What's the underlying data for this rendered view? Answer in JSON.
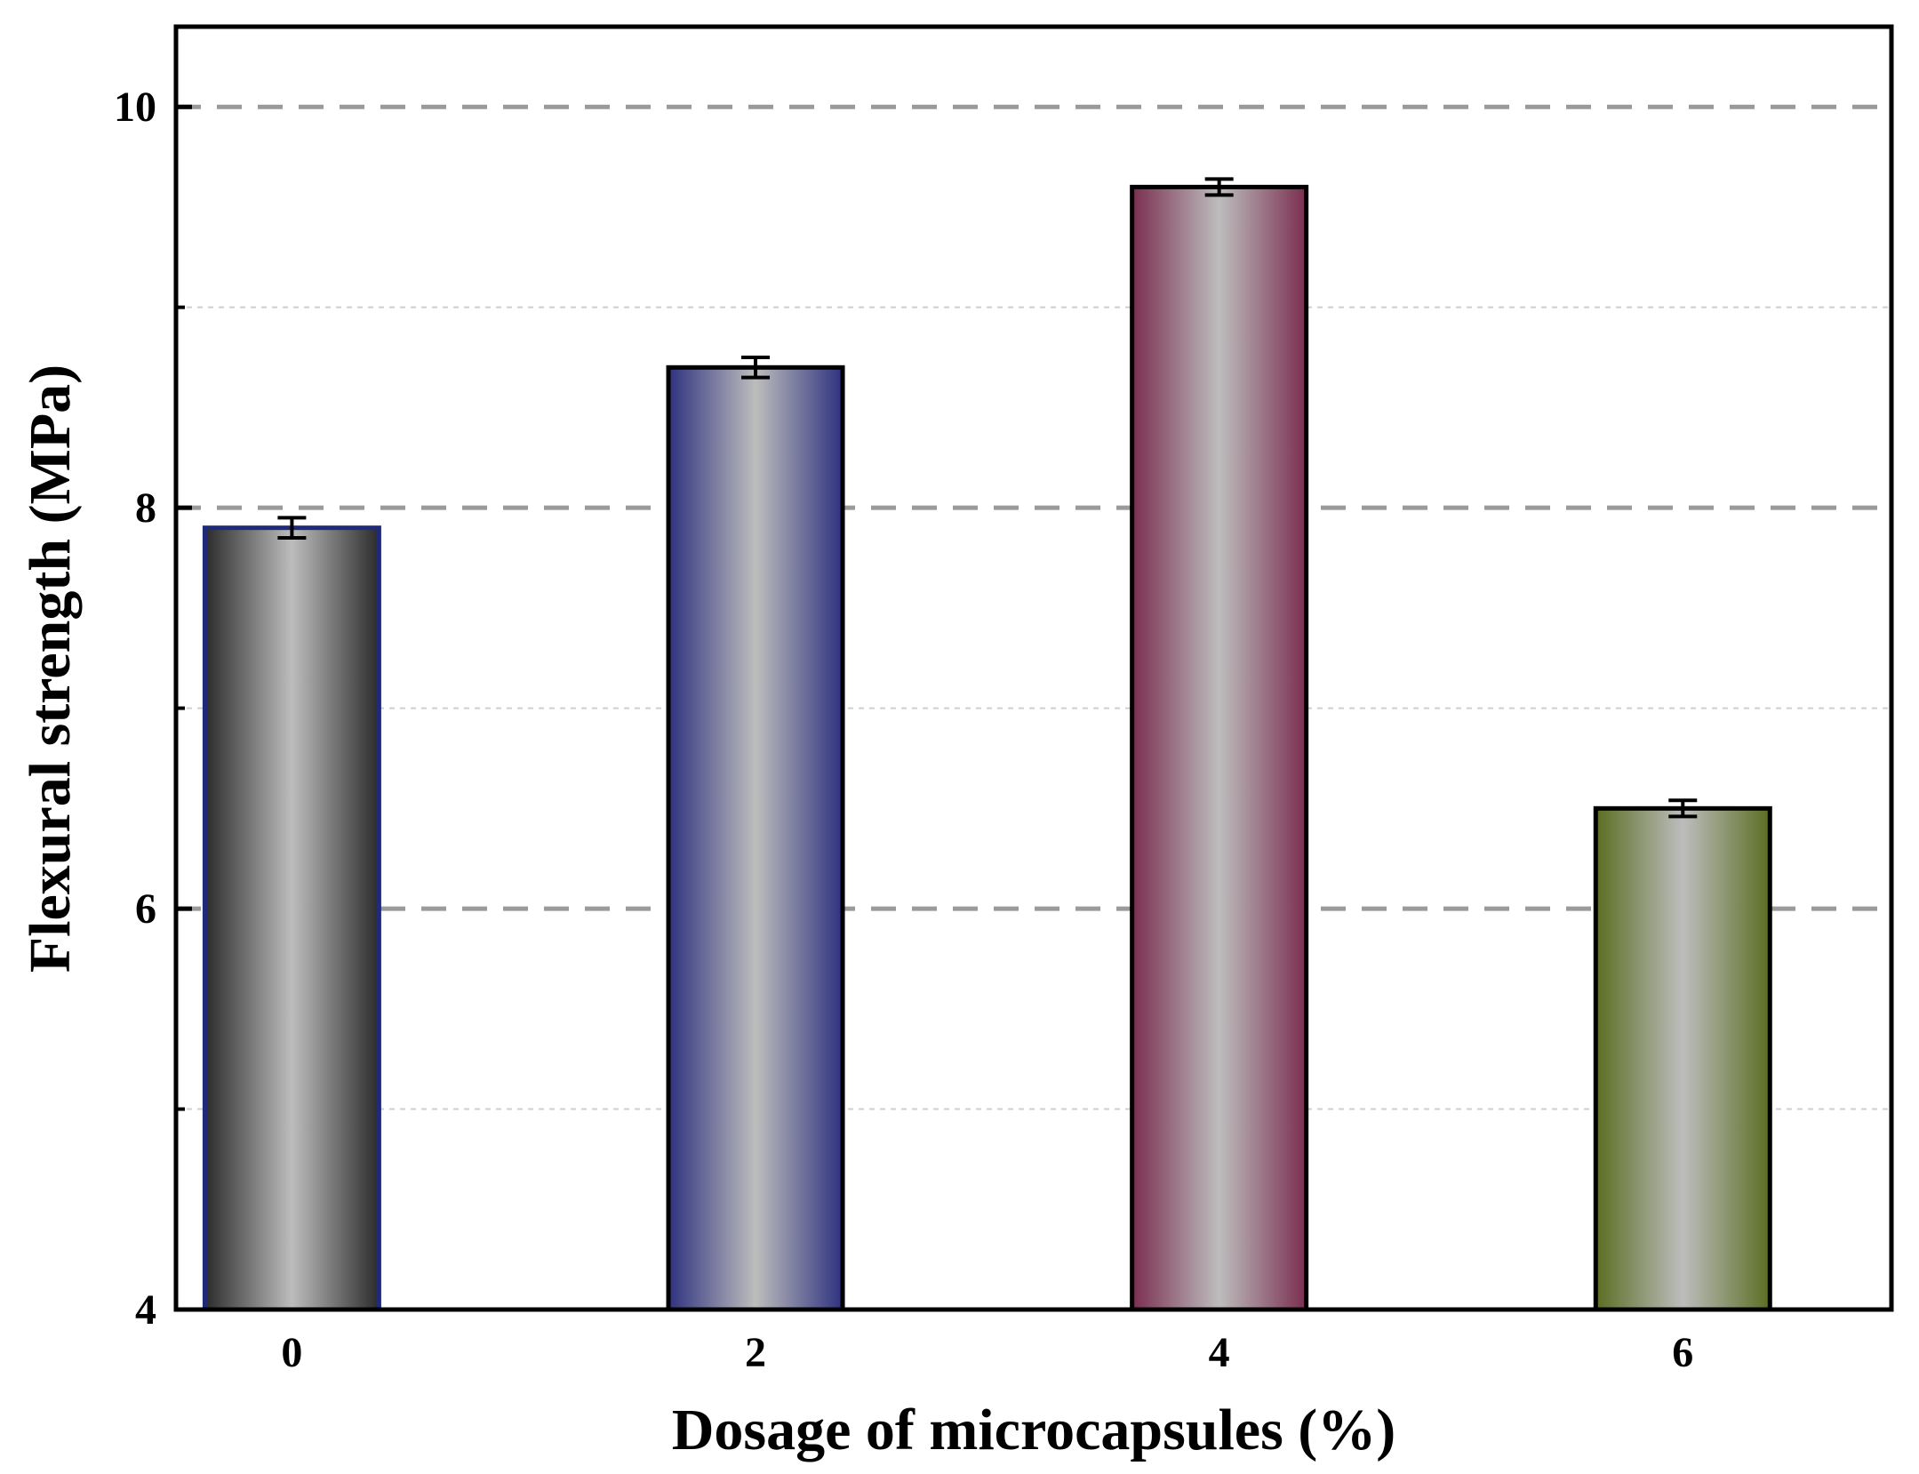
{
  "chart_data": {
    "type": "bar",
    "title": "",
    "xlabel": "Dosage of microcapsules (%)",
    "ylabel": "Flexural strength (MPa)",
    "categories": [
      "0",
      "2",
      "4",
      "6"
    ],
    "values": [
      7.9,
      8.7,
      9.6,
      6.5
    ],
    "errors": [
      0.05,
      0.05,
      0.04,
      0.04
    ],
    "ylim": [
      4,
      10.4
    ],
    "yticks": [
      4,
      6,
      8,
      10
    ],
    "ytick_labels": [
      "4",
      "6",
      "8",
      "10"
    ],
    "major_grid": [
      6,
      8,
      10
    ],
    "minor_grid": [
      5,
      7,
      9
    ],
    "grid": true,
    "bar_colors": {
      "edge": [
        "#1f2a7a",
        "#000000",
        "#000000",
        "#000000"
      ],
      "outer": [
        "#2b2b2b",
        "#2e327f",
        "#7a2e50",
        "#5b6e22"
      ],
      "center": "#bdbdbd"
    }
  }
}
